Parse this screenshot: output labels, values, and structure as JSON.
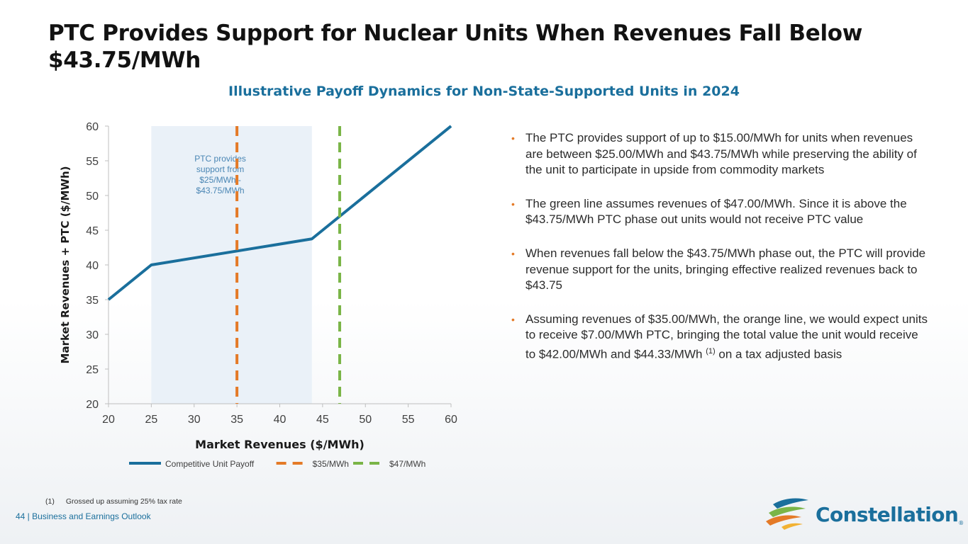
{
  "page": {
    "title": "PTC Provides Support for Nuclear Units When Revenues Fall Below $43.75/MWh",
    "subtitle": "Illustrative Payoff Dynamics for Non-State-Supported Units in 2024",
    "bullets": [
      {
        "text": "The PTC provides support of up to $15.00/MWh for units when revenues are between $25.00/MWh and $43.75/MWh while preserving the ability of the unit to participate in upside from commodity markets"
      },
      {
        "text": "The green line assumes revenues of $47.00/MWh. Since it is above the $43.75/MWh PTC phase out units would not receive PTC value"
      },
      {
        "text": "When revenues fall below the $43.75/MWh phase out, the PTC will provide revenue support for the units, bringing effective realized revenues back to $43.75"
      },
      {
        "text_before": "Assuming revenues of $35.00/MWh, the orange line, we would expect units to receive $7.00/MWh PTC, bringing the total value the unit would receive to $42.00/MWh and $44.33/MWh",
        "sup": "(1)",
        "text_after": " on a tax adjusted basis"
      }
    ],
    "footnote": {
      "number": "(1)",
      "text": "Grossed up assuming 25% tax rate"
    },
    "footer": "44 | Business and Earnings Outlook",
    "logo": {
      "name": "Constellation",
      "mark": "®"
    },
    "bullet_icon": "bullet-dot",
    "colors": {
      "title": "#121212",
      "accent_blue": "#1a6f9c",
      "orange": "#e47a27",
      "green": "#7ab547",
      "band": "#eaf1f8"
    }
  },
  "chart_data": {
    "type": "line",
    "xlabel": "Market Revenues ($/MWh)",
    "ylabel": "Market Revenues + PTC ($/MWh)",
    "xlim": [
      20,
      60
    ],
    "ylim": [
      20,
      60
    ],
    "xticks": [
      20,
      25,
      30,
      35,
      40,
      45,
      50,
      55,
      60
    ],
    "yticks": [
      20,
      25,
      30,
      35,
      40,
      45,
      50,
      55,
      60
    ],
    "shaded_region": {
      "x": [
        25,
        43.75
      ],
      "label_lines": [
        "PTC provides",
        "support from",
        "$25/MWh -",
        "$43.75/MWh"
      ]
    },
    "series": [
      {
        "name": "Competitive Unit Payoff",
        "style": "solid",
        "color": "#1a6f9c",
        "x": [
          20,
          25,
          43.75,
          60
        ],
        "y": [
          35,
          40,
          43.75,
          60
        ]
      },
      {
        "name": "$35/MWh",
        "style": "dashed-vertical",
        "color": "#e47a27",
        "x_value": 35
      },
      {
        "name": "$47/MWh",
        "style": "dashed-vertical",
        "color": "#7ab547",
        "x_value": 47
      }
    ],
    "legend_position": "bottom"
  }
}
